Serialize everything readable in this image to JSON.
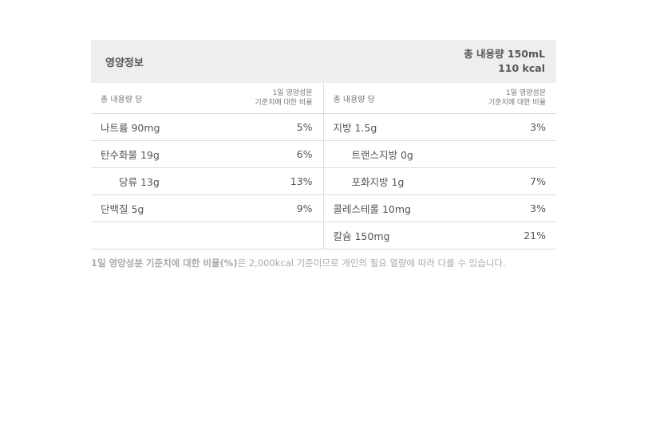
{
  "header": {
    "title": "영양정보",
    "total_volume": "총 내용량 150mL",
    "calories": "110 kcal"
  },
  "columns": {
    "left_label": "총 내용량 당",
    "left_pct_line1": "1일 영양성분",
    "left_pct_line2": "기준치에 대한 비율",
    "right_label": "총 내용량 당",
    "right_pct_line1": "1일 영양성분",
    "right_pct_line2": "기준치에 대한 비율"
  },
  "rows": [
    {
      "left_name": "나트륨 90mg",
      "left_pct": "5%",
      "right_name": "지방 1.5g",
      "right_pct": "3%"
    },
    {
      "left_name": "탄수화물 19g",
      "left_pct": "6%",
      "right_name": "트랜스지방 0g",
      "right_pct": ""
    },
    {
      "left_name": "당류 13g",
      "left_pct": "13%",
      "right_name": "포화지방 1g",
      "right_pct": "7%"
    },
    {
      "left_name": "단백질 5g",
      "left_pct": "9%",
      "right_name": "콜레스테롤 10mg",
      "right_pct": "3%"
    },
    {
      "left_name": "",
      "left_pct": "",
      "right_name": "칼슘 150mg",
      "right_pct": "21%"
    }
  ],
  "footnote": {
    "bold": "1일 영양성분 기준치에 대한 비율(%)",
    "rest": "은 2,000kcal 기준이므로 개인의 필요 열량에 따라 다를 수 있습니다."
  }
}
